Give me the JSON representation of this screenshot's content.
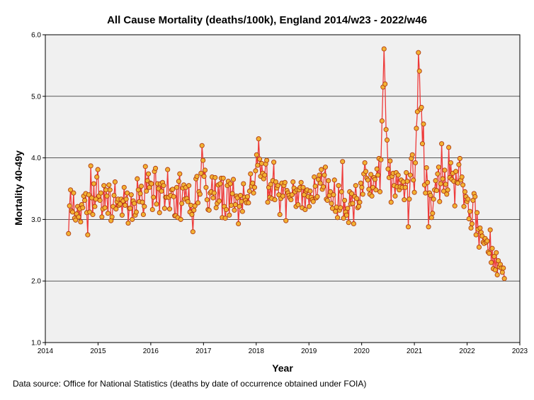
{
  "chart_data": {
    "type": "line",
    "title": "All Cause Mortality (deaths/100k), England 2014/w23 - 2022/w46",
    "xlabel": "Year",
    "ylabel": "Mortality 40-49y",
    "xlim": [
      2014,
      2023
    ],
    "ylim": [
      1.0,
      6.0
    ],
    "x_ticks": [
      "2014",
      "2015",
      "2016",
      "2017",
      "2018",
      "2019",
      "2020",
      "2021",
      "2022",
      "2023"
    ],
    "y_ticks": [
      "1.0",
      "2.0",
      "3.0",
      "4.0",
      "5.0",
      "6.0"
    ],
    "grid": "horizontal",
    "source": "Data source: Office for National Statistics (deaths by date of occurrence obtained under FOIA)",
    "series": [
      {
        "name": "Mortality 40-49y",
        "line_color": "#ee3a3a",
        "marker_fill": "#f2b233",
        "marker_edge": "#b13a10",
        "x_start": 2014.44,
        "x_step": 0.01918,
        "values": [
          2.77,
          3.22,
          3.48,
          3.14,
          3.12,
          3.43,
          3.02,
          2.99,
          3.09,
          3.21,
          3.04,
          3.17,
          2.96,
          3.24,
          3.19,
          3.38,
          3.31,
          3.42,
          3.11,
          2.75,
          3.4,
          3.12,
          3.87,
          3.35,
          3.08,
          3.58,
          3.21,
          3.33,
          3.69,
          3.81,
          3.38,
          3.31,
          3.43,
          3.04,
          3.17,
          3.55,
          3.19,
          3.48,
          3.38,
          3.1,
          3.56,
          3.48,
          2.98,
          3.04,
          3.21,
          3.39,
          3.61,
          3.17,
          3.29,
          3.33,
          3.23,
          3.25,
          3.33,
          3.07,
          3.3,
          3.52,
          3.23,
          3.33,
          3.43,
          2.94,
          3.18,
          3.18,
          3.4,
          3.0,
          3.3,
          3.26,
          3.07,
          3.12,
          3.66,
          3.48,
          3.29,
          3.42,
          3.54,
          3.28,
          3.08,
          3.21,
          3.86,
          3.46,
          3.63,
          3.74,
          3.52,
          3.59,
          3.58,
          3.16,
          3.36,
          3.78,
          3.83,
          3.25,
          3.58,
          3.5,
          3.11,
          3.58,
          3.46,
          3.6,
          3.55,
          3.18,
          3.36,
          3.36,
          3.81,
          3.36,
          3.17,
          3.39,
          3.48,
          3.49,
          3.37,
          3.06,
          3.06,
          3.52,
          3.03,
          3.62,
          3.74,
          3.0,
          3.26,
          3.51,
          3.56,
          3.33,
          3.52,
          3.34,
          3.29,
          3.55,
          3.12,
          3.23,
          3.08,
          2.8,
          3.15,
          3.22,
          3.66,
          3.7,
          3.27,
          3.45,
          3.41,
          3.75,
          4.2,
          3.96,
          3.7,
          3.8,
          3.52,
          3.32,
          3.16,
          3.15,
          3.43,
          3.45,
          3.69,
          3.35,
          3.43,
          3.68,
          3.19,
          3.26,
          3.56,
          3.3,
          3.58,
          3.67,
          3.03,
          3.67,
          3.21,
          3.02,
          3.16,
          3.55,
          3.62,
          3.07,
          3.58,
          3.23,
          3.42,
          3.65,
          3.15,
          3.24,
          3.38,
          3.35,
          2.93,
          3.21,
          3.39,
          3.29,
          3.13,
          3.58,
          3.36,
          3.31,
          3.27,
          3.37,
          3.27,
          3.46,
          3.74,
          3.54,
          3.59,
          3.43,
          3.52,
          3.79,
          4.05,
          3.88,
          4.31,
          3.98,
          3.7,
          3.91,
          3.75,
          3.66,
          3.72,
          3.9,
          3.96,
          3.28,
          3.52,
          3.36,
          3.57,
          3.34,
          3.63,
          3.93,
          3.32,
          3.61,
          3.51,
          3.55,
          3.4,
          3.08,
          3.34,
          3.59,
          3.38,
          3.55,
          3.6,
          2.98,
          3.47,
          3.43,
          3.39,
          3.35,
          3.32,
          3.4,
          3.61,
          3.51,
          3.45,
          3.21,
          3.48,
          3.24,
          3.48,
          3.52,
          3.6,
          3.19,
          3.52,
          3.4,
          3.16,
          3.46,
          3.48,
          3.37,
          3.21,
          3.46,
          3.36,
          3.32,
          3.29,
          3.69,
          3.54,
          3.35,
          3.37,
          3.65,
          3.72,
          3.59,
          3.81,
          3.49,
          3.53,
          3.72,
          3.85,
          3.33,
          3.31,
          3.63,
          3.39,
          3.45,
          3.26,
          3.18,
          3.4,
          3.64,
          3.13,
          3.2,
          3.03,
          3.55,
          3.15,
          3.19,
          3.45,
          3.94,
          3.02,
          3.31,
          3.12,
          3.07,
          3.18,
          2.95,
          3.45,
          3.25,
          3.42,
          3.26,
          2.93,
          3.37,
          3.55,
          3.34,
          3.19,
          3.21,
          3.28,
          3.59,
          3.52,
          3.41,
          3.74,
          3.92,
          3.78,
          3.67,
          3.64,
          3.49,
          3.41,
          3.73,
          3.38,
          3.52,
          3.68,
          3.65,
          3.48,
          3.82,
          3.72,
          3.99,
          3.45,
          3.97,
          4.6,
          5.15,
          5.77,
          5.2,
          4.46,
          4.29,
          3.82,
          3.68,
          3.95,
          3.28,
          3.7,
          3.75,
          3.55,
          3.38,
          3.76,
          3.53,
          3.72,
          3.48,
          3.53,
          3.64,
          3.52,
          3.61,
          3.32,
          3.52,
          3.76,
          3.62,
          2.88,
          3.33,
          3.72,
          3.99,
          4.05,
          3.64,
          3.44,
          3.92,
          4.48,
          4.75,
          5.71,
          5.41,
          4.79,
          4.82,
          4.23,
          4.55,
          3.56,
          3.43,
          3.84,
          3.6,
          2.88,
          3.43,
          3.39,
          3.03,
          3.1,
          3.33,
          3.48,
          3.63,
          3.47,
          3.74,
          3.85,
          3.29,
          3.58,
          4.23,
          3.66,
          3.46,
          3.8,
          3.57,
          3.41,
          3.48,
          4.17,
          3.68,
          3.92,
          3.65,
          3.75,
          3.62,
          3.22,
          3.78,
          3.6,
          3.59,
          3.89,
          3.99,
          3.64,
          3.69,
          3.56,
          3.21,
          3.45,
          3.37,
          3.29,
          3.33,
          3.01,
          3.13,
          2.86,
          2.93,
          3.31,
          3.42,
          3.37,
          2.75,
          3.11,
          2.84,
          2.55,
          2.86,
          2.79,
          2.73,
          2.63,
          2.61,
          2.69,
          2.63,
          2.65,
          2.47,
          2.45,
          2.83,
          2.3,
          2.53,
          2.2,
          2.4,
          2.18,
          2.46,
          2.1,
          2.33,
          2.23,
          2.27,
          2.21,
          2.14,
          2.21,
          2.04
        ]
      }
    ]
  }
}
